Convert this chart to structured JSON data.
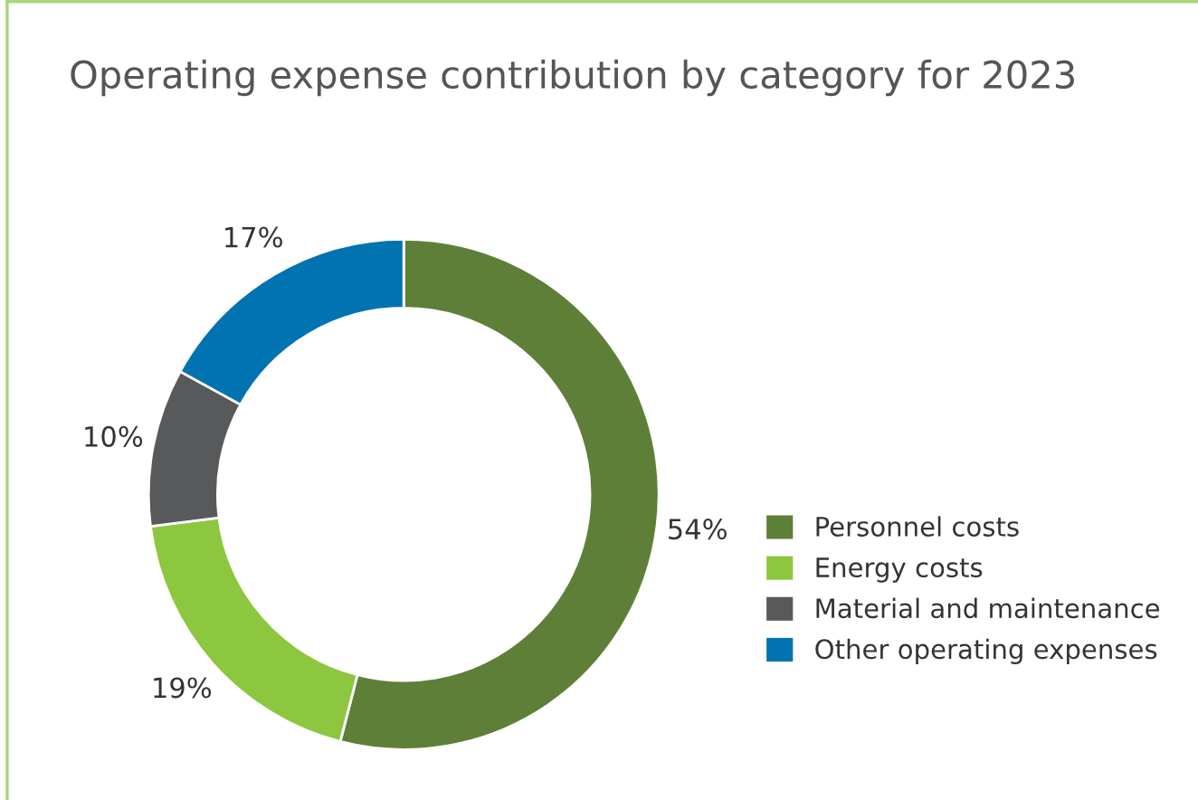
{
  "chart_data": {
    "type": "donut",
    "title": "Operating expense contribution by category for 2023",
    "categories": [
      "Personnel costs",
      "Energy costs",
      "Material and maintenance",
      "Other operating expenses"
    ],
    "values": [
      54,
      19,
      10,
      17
    ],
    "colors": [
      "#5e7f38",
      "#8dc63f",
      "#58595b",
      "#0073b0"
    ],
    "value_labels": [
      "54%",
      "19%",
      "10%",
      "17%"
    ],
    "legend": "right"
  }
}
